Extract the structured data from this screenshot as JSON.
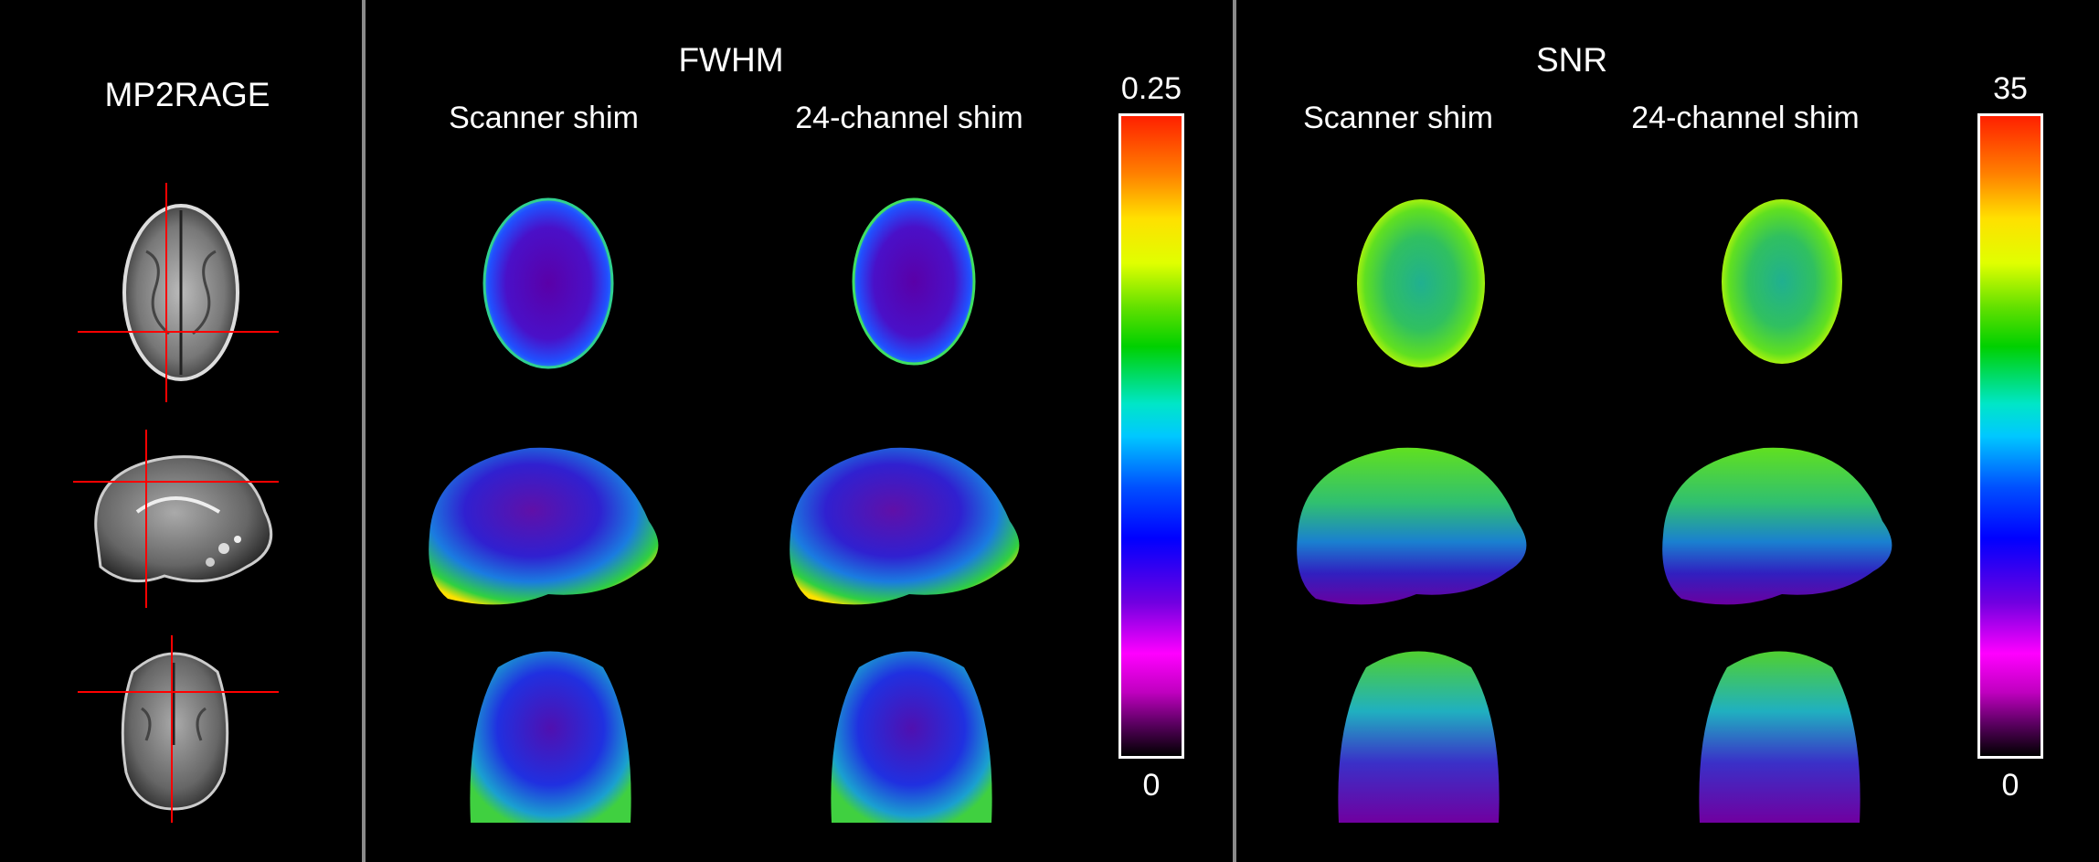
{
  "panels": {
    "mp2rage_title": "MP2RAGE",
    "fwhm_title": "FWHM",
    "snr_title": "SNR"
  },
  "columns": {
    "fwhm_scanner": "Scanner shim",
    "fwhm_24ch": "24-channel shim",
    "snr_scanner": "Scanner shim",
    "snr_24ch": "24-channel shim"
  },
  "colorbars": {
    "fwhm": {
      "max": "0.25",
      "min": "0"
    },
    "snr": {
      "max": "35",
      "min": "0"
    }
  },
  "colors": {
    "background": "#000000",
    "divider": "#8a8a8a",
    "crosshair": "#ff0000"
  }
}
